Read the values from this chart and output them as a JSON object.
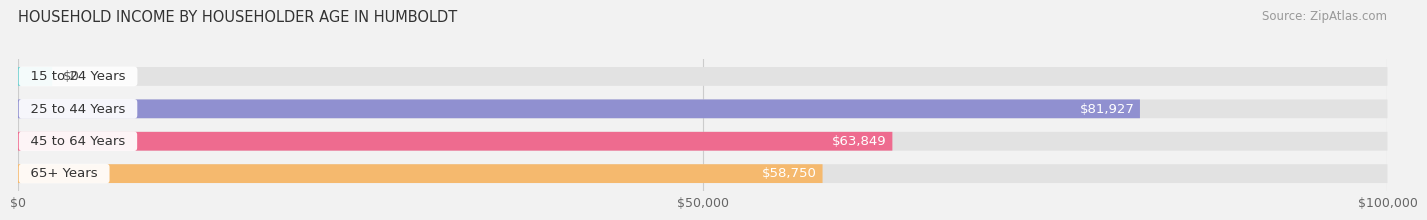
{
  "title": "HOUSEHOLD INCOME BY HOUSEHOLDER AGE IN HUMBOLDT",
  "source": "Source: ZipAtlas.com",
  "categories": [
    "15 to 24 Years",
    "25 to 44 Years",
    "45 to 64 Years",
    "65+ Years"
  ],
  "values": [
    0,
    81927,
    63849,
    58750
  ],
  "bar_colors": [
    "#6dcfcf",
    "#9090d0",
    "#ee6b8f",
    "#f5b96e"
  ],
  "value_labels": [
    "$0",
    "$81,927",
    "$63,849",
    "$58,750"
  ],
  "xlim": [
    0,
    100000
  ],
  "xticks": [
    0,
    50000,
    100000
  ],
  "xticklabels": [
    "$0",
    "$50,000",
    "$100,000"
  ],
  "background_color": "#f2f2f2",
  "bar_background_color": "#e2e2e2",
  "title_fontsize": 10.5,
  "source_fontsize": 8.5,
  "label_fontsize": 9.5,
  "value_fontsize": 9.5,
  "tick_fontsize": 9
}
